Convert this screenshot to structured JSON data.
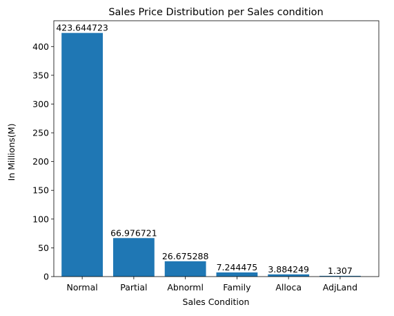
{
  "chart_data": {
    "type": "bar",
    "title": "Sales Price Distribution per Sales condition",
    "xlabel": "Sales Condition",
    "ylabel": "In Millions(M)",
    "categories": [
      "Normal",
      "Partial",
      "Abnorml",
      "Family",
      "Alloca",
      "AdjLand"
    ],
    "values": [
      423.644723,
      66.976721,
      26.675288,
      7.244475,
      3.884249,
      1.307
    ],
    "value_labels": [
      "423.644723",
      "66.976721",
      "26.675288",
      "7.244475",
      "3.884249",
      "1.307"
    ],
    "ylim": [
      0,
      444.83
    ],
    "yticks": [
      0,
      50,
      100,
      150,
      200,
      250,
      300,
      350,
      400
    ],
    "grid": false,
    "bar_color": "#1f77b4"
  }
}
